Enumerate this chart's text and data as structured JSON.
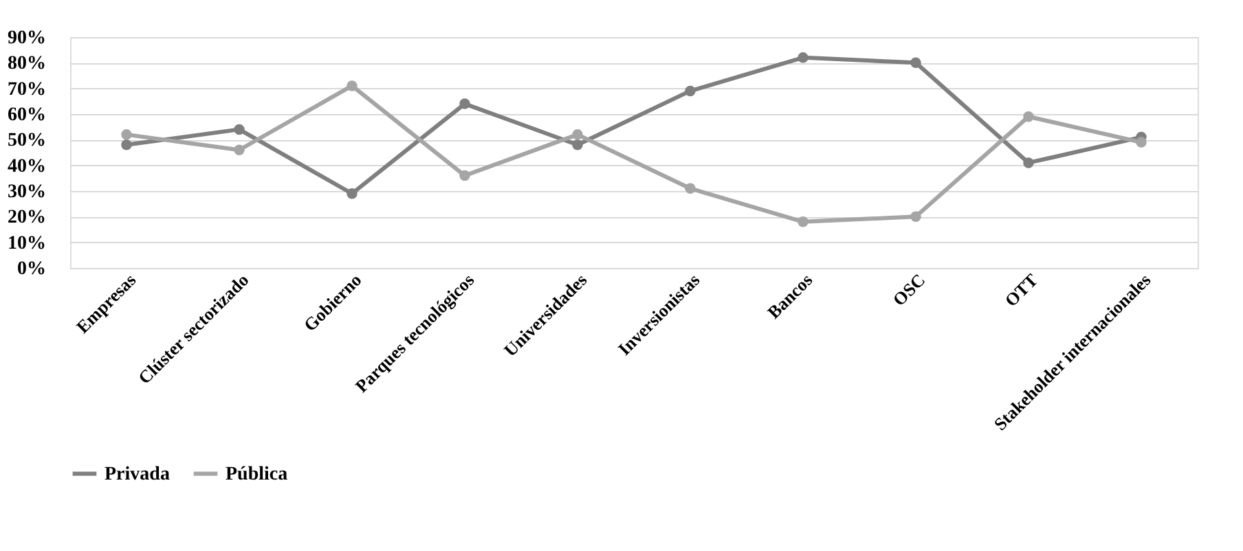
{
  "chart_data": {
    "type": "line",
    "categories": [
      "Empresas",
      "Clúster sectorizado",
      "Gobierno",
      "Parques tecnológicos",
      "Universidades",
      "Inversionistas",
      "Bancos",
      "OSC",
      "OTT",
      "Stakeholder internacionales"
    ],
    "series": [
      {
        "name": "Privada",
        "color": "#7f7f7f",
        "values": [
          48,
          54,
          29,
          64,
          48,
          69,
          82,
          80,
          41,
          51
        ]
      },
      {
        "name": "Pública",
        "color": "#a5a5a5",
        "values": [
          52,
          46,
          71,
          36,
          52,
          31,
          18,
          20,
          59,
          49
        ]
      }
    ],
    "ylim": [
      0,
      90
    ],
    "yticks": [
      {
        "value": 0,
        "label": "0%"
      },
      {
        "value": 10,
        "label": "10%"
      },
      {
        "value": 20,
        "label": "20%"
      },
      {
        "value": 30,
        "label": "30%"
      },
      {
        "value": 40,
        "label": "40%"
      },
      {
        "value": 50,
        "label": "50%"
      },
      {
        "value": 60,
        "label": "60%"
      },
      {
        "value": 70,
        "label": "70%"
      },
      {
        "value": 80,
        "label": "80%"
      },
      {
        "value": 90,
        "label": "90%"
      }
    ],
    "grid": "y",
    "legend": "bottom",
    "marker": "circle",
    "line_style": "solid"
  }
}
